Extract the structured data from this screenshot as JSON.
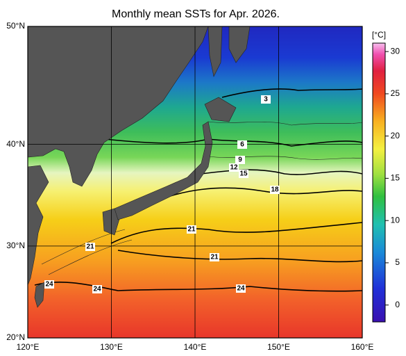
{
  "map": {
    "title": "Monthly mean SSTs for Apr. 2026.",
    "lon_ticks": [
      {
        "value": 120,
        "label": "120°E"
      },
      {
        "value": 130,
        "label": "130°E"
      },
      {
        "value": 140,
        "label": "140°E"
      },
      {
        "value": 150,
        "label": "150°E"
      },
      {
        "value": 160,
        "label": "160°E"
      }
    ],
    "lat_ticks": [
      {
        "value": 20,
        "label": "20°N"
      },
      {
        "value": 30,
        "label": "30°N"
      },
      {
        "value": 40,
        "label": "40°N"
      },
      {
        "value": 50,
        "label": "50°N"
      }
    ],
    "colorbar": {
      "unit": "[°C]",
      "lim": [
        -2,
        31
      ],
      "ticks": [
        0,
        5,
        10,
        15,
        20,
        25,
        30
      ]
    },
    "contour_labels": [
      3,
      6,
      9,
      12,
      15,
      18,
      21,
      21,
      21,
      24,
      24,
      24
    ]
  }
}
